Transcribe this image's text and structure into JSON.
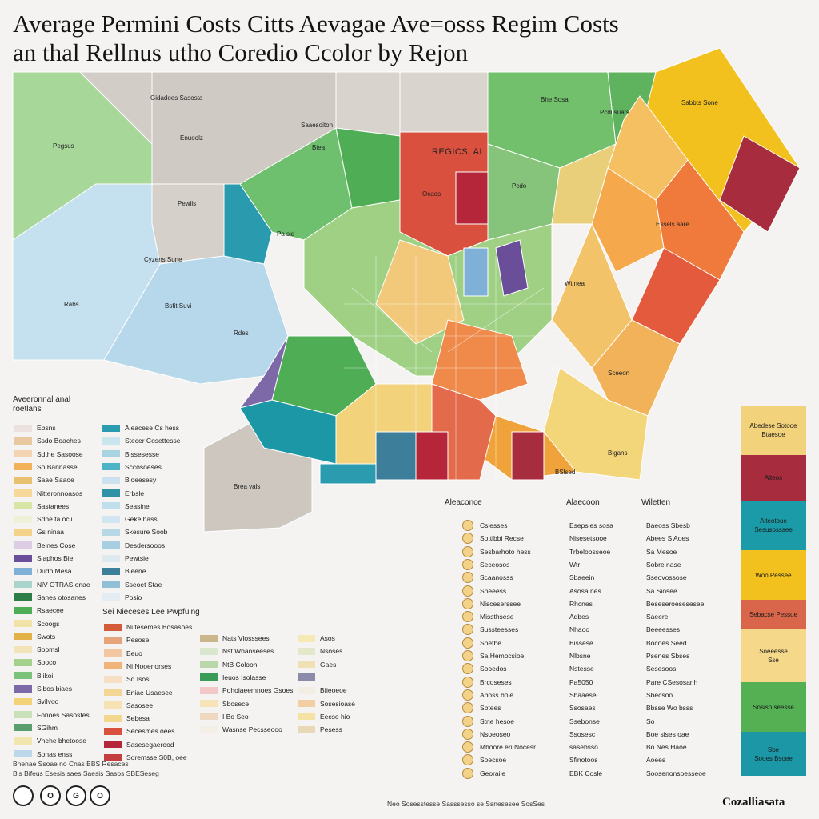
{
  "title": {
    "line1": "Average  Permini Costs Citts Aevagae Ave=osss Regim Costs",
    "line2": "an thal Rellnus utho Coredio Ccolor by Rejon"
  },
  "map": {
    "labels": [
      "Gidadoes Sasosta",
      "Pegsus",
      "Enuoolz",
      "Saaesoiton",
      "Biea",
      "Pewlis",
      "REGICS, AL",
      "Ocaos",
      "Bhe Sosa",
      "Pcdi suats",
      "Sabbts Sone",
      "Pcdo",
      "Cyzens Sune",
      "Rabs",
      "Bsfit Suvi",
      "Rdes",
      "Pa sid",
      "Essels aare",
      "Sceeon",
      "Wtinea",
      "Bigans",
      "BSlsed",
      "Brea vals"
    ]
  },
  "legend": {
    "heading_line1": "Aveeronnal anal",
    "heading_line2": "roetlans",
    "col1": [
      {
        "label": "Ebsns",
        "color": "#ebe2e0"
      },
      {
        "label": "Ssdo   Boaches",
        "color": "#e8c9a0"
      },
      {
        "label": "Sdthe   Sasoose",
        "color": "#f2d4b2"
      },
      {
        "label": "So Bannasse",
        "color": "#f2b25a"
      },
      {
        "label": "Saae    Saaoe",
        "color": "#e9c070"
      },
      {
        "label": "Nitteronnoasos",
        "color": "#f6d89a"
      },
      {
        "label": "Sastanees",
        "color": "#d7e6a4"
      },
      {
        "label": "Sdhe ta ocii",
        "color": "#eef1d8"
      },
      {
        "label": "Gs ninaa",
        "color": "#f5d28a"
      },
      {
        "label": "Beines   Cose",
        "color": "#dccde5"
      },
      {
        "label": "Siaphos  Bie",
        "color": "#6a4e9a"
      },
      {
        "label": "Dudo Mesa",
        "color": "#7fb0d8"
      },
      {
        "label": "NiV OTRAS onae",
        "color": "#a8d4cc"
      },
      {
        "label": "Sanes otosanes",
        "color": "#2f7d46"
      },
      {
        "label": "Rsaecee",
        "color": "#4fae55"
      },
      {
        "label": "Scoogs",
        "color": "#f1e3a8"
      },
      {
        "label": "Swots",
        "color": "#e3b246"
      },
      {
        "label": "Sopmsl",
        "color": "#f3e3b9"
      },
      {
        "label": "Sooco",
        "color": "#a4d18b"
      },
      {
        "label": "Biikoi",
        "color": "#7bc27b"
      },
      {
        "label": "Sibos biaes",
        "color": "#7d68a8"
      },
      {
        "label": "Svilvoo",
        "color": "#f2d37a"
      },
      {
        "label": "Fonoes Sasostes",
        "color": "#c9e0b8"
      },
      {
        "label": "SGihm",
        "color": "#5b9e6d"
      },
      {
        "label": "Vnehe bhetoose",
        "color": "#f1e6b0"
      },
      {
        "label": "Sonas enss",
        "color": "#bcd6ea"
      }
    ],
    "col2": [
      {
        "label": "Aleacese Cs hess",
        "color": "#2b9bb0"
      },
      {
        "label": "Stecer   Cosettesse",
        "color": "#c9e6ee"
      },
      {
        "label": "Bissesesse",
        "color": "#a8d3e0"
      },
      {
        "label": "Sccosoeses",
        "color": "#4cb4c5"
      },
      {
        "label": "Bioeesesy",
        "color": "#cbe2ee"
      },
      {
        "label": "Erbsle",
        "color": "#2f93a5"
      },
      {
        "label": "Seasine",
        "color": "#bfe0ea"
      },
      {
        "label": "Geke hass",
        "color": "#d2e6f1"
      },
      {
        "label": "Skesure Soob",
        "color": "#b7d9e6"
      },
      {
        "label": "Desdersooos",
        "color": "#a7cfe2"
      },
      {
        "label": "Pewtsie",
        "color": "#dde8ef"
      },
      {
        "label": "Bleene",
        "color": "#3d7e9a"
      },
      {
        "label": "Sseoet  Stae",
        "color": "#8fc0d6"
      },
      {
        "label": "Posio",
        "color": "#e4edf3"
      }
    ],
    "sublegend_title": "Sei   Nieceses  Lee  Pwpfuing",
    "sub_a": [
      {
        "label": "Ni tesemes Bosasoes",
        "color": "#d35b3a"
      },
      {
        "label": "Pesose",
        "color": "#e6a27a"
      },
      {
        "label": "Beuo",
        "color": "#f2c7a2"
      },
      {
        "label": "Ni Nooenorses",
        "color": "#f0b47b"
      },
      {
        "label": "Sd Isosi",
        "color": "#f7dfc3"
      },
      {
        "label": "Eniae  Usaesee",
        "color": "#f3d596"
      },
      {
        "label": "Sasosee",
        "color": "#f6e2b4"
      },
      {
        "label": "Sebesa",
        "color": "#f4d78f"
      },
      {
        "label": "Secesmes oees",
        "color": "#d9503f"
      },
      {
        "label": "Sasesegaerood",
        "color": "#b5263a"
      },
      {
        "label": "Soremsse S0B, oee",
        "color": "#c43d3f"
      }
    ],
    "sub_b": [
      {
        "label": "Nats Vlosssees",
        "color": "#cbb58a"
      },
      {
        "label": "Nst Wbaoseeses",
        "color": "#d9e7cf"
      },
      {
        "label": "NtB Coloon",
        "color": "#b9d7a8"
      },
      {
        "label": "Ieuos   Isolasse",
        "color": "#3a9b57"
      },
      {
        "label": "Pohoiaeemnoes Gsoes",
        "color": "#f1c7c7"
      },
      {
        "label": "Sbosece",
        "color": "#f6e3b8"
      },
      {
        "label": "I Bo Seo",
        "color": "#eed9c0"
      },
      {
        "label": "Wasnse Pecsseooo",
        "color": "#f3efe6"
      }
    ],
    "sub_c": [
      {
        "label": "Asos",
        "color": "#f5e9b6"
      },
      {
        "label": "Nsoses",
        "color": "#e2e8c9"
      },
      {
        "label": "Gaes",
        "color": "#f0e1b5"
      },
      {
        "label": "",
        "color": "#8b8aa8"
      },
      {
        "label": "Bfieoeoe",
        "color": "#f3eee3"
      },
      {
        "label": "Sosesioase",
        "color": "#f1cfa3"
      },
      {
        "label": "Eecso hio",
        "color": "#f5e2a5"
      },
      {
        "label": "Pesess",
        "color": "#e9d8b8"
      }
    ],
    "col4_label": "Aleaconce",
    "col4": [
      "Cslesses",
      "Sottlbbi Recse",
      "Sesbarhoto hess",
      "Seceosos",
      "Scaanosss",
      "Sheeess",
      "Nisceserssee",
      "Missthsese",
      "Sussteesses",
      "Shetbe",
      "Sa   Hemocsioe",
      "Sooedos",
      "Brcoseses",
      "Aboss bole",
      "Sbtees",
      "Stne hesoe",
      "Nsoeoseo",
      "Mhoore eri Nocesr",
      "Soecsoe",
      "Georaile"
    ],
    "col5_label": "Alaecoon",
    "col5": [
      "Esepsles sosa",
      "Nisesetsooe",
      "Trbeloosseoe",
      "Wtr",
      "Sbaeein",
      "Asosa nes",
      "Rhcnes",
      "Adbes",
      "Nhaoo",
      "Bissese",
      "Nlbsne",
      "Nstesse",
      "Pa5050",
      "Sbaaese",
      "Ssosaes",
      "Ssebonse",
      "Ssosesc",
      "sasebsso",
      "Sfinotoos",
      "EBK Cosle"
    ],
    "col6_label": "Wiletten",
    "col6": [
      "Baeoss Sbesb",
      "Abees S Aoes",
      "Sa Mesoe",
      "Sobre nase",
      "Sseovossose",
      "Sa  Siosee",
      "Beseseroesesesee",
      "Saeere",
      "Beeeesses",
      "Bocoes  Seed",
      "Psenes Sbses",
      "Sesesoos",
      "Pare CSesosanh",
      "Sbecsoo",
      "Bbsse Wo bsss",
      "So",
      "Boe sises  oae",
      "Bo Nes Haoe",
      "Aoees",
      "Soosenonsoesseoe"
    ]
  },
  "bar_panel": [
    {
      "label": "Abedese Sotooe",
      "sub": "Btaesoe",
      "color": "#f2d27a",
      "share": 0.13
    },
    {
      "label": "Alteos",
      "sub": "",
      "color": "#a72c3e",
      "share": 0.12
    },
    {
      "label": "Alteotoue",
      "sub": "Sesusosssee",
      "color": "#1b9aa7",
      "share": 0.13
    },
    {
      "label": "Woo Pessee",
      "sub": "",
      "color": "#f2c11d",
      "share": 0.13
    },
    {
      "label": "Sebacse Pessue",
      "sub": "",
      "color": "#d9664a",
      "share": 0.075
    },
    {
      "label": "Soeeesse",
      "sub": "Sse",
      "color": "#f5d88a",
      "share": 0.14
    },
    {
      "label": "Sosiso seesse",
      "sub": "",
      "color": "#54b053",
      "share": 0.13
    },
    {
      "label": "Sbe",
      "sub": "Sooes Bsoee",
      "color": "#1b97a6",
      "share": 0.115
    }
  ],
  "footer": {
    "line1": "Bnenae   Ssoae  no Cnas  BBS Resaces",
    "line2": "Bis  Bifeus Esesis saes  Saesis Sasos SBESeseg",
    "bottom_note": "Neo  Sosesstesse  Sasssesso se  Ssnesesee  SosSes",
    "buttons": [
      "",
      "O",
      "G",
      "O"
    ],
    "brand": "Cozalliasata"
  },
  "colors": {
    "background": "#f4f3f1",
    "grey_region": "#cfcac4",
    "green_region": "#8ec97a",
    "blue_region": "#b9d9e8",
    "red_region": "#d9503f",
    "orange_region": "#f0a33a",
    "yellow_region": "#f2c11d"
  }
}
